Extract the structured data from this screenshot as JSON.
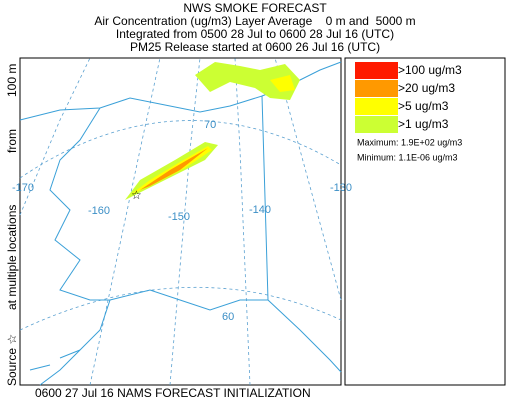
{
  "header": {
    "title": "NWS SMOKE FORECAST",
    "lines": [
      "Air Concentration (ug/m3) Layer Average    0 m and  5000 m",
      "Integrated from 0500 28 Jul to 0600 28 Jul 16 (UTC)",
      "PM25 Release started at 0600 26 Jul 16 (UTC)"
    ]
  },
  "side_label": {
    "source": "Source ☆",
    "locations": "at multiple locations",
    "from": "from",
    "height": "100 m"
  },
  "map": {
    "graticule_labels": [
      "70",
      "-170",
      "-160",
      "-150",
      "-140",
      "-130",
      "60"
    ]
  },
  "legend": {
    "levels": [
      {
        "label": ">100 ug/m3",
        "color": "#ff1a00"
      },
      {
        "label": ">20 ug/m3",
        "color": "#ff9900"
      },
      {
        "label": ">5 ug/m3",
        "color": "#ffff00"
      },
      {
        "label": ">1 ug/m3",
        "color": "#ccff33"
      }
    ],
    "maximum": "Maximum: 1.9E+02 ug/m3",
    "minimum": "Minimum: 1.1E-06 ug/m3"
  },
  "footer": "0600 27 Jul 16 NAMS FORECAST INITIALIZATION"
}
